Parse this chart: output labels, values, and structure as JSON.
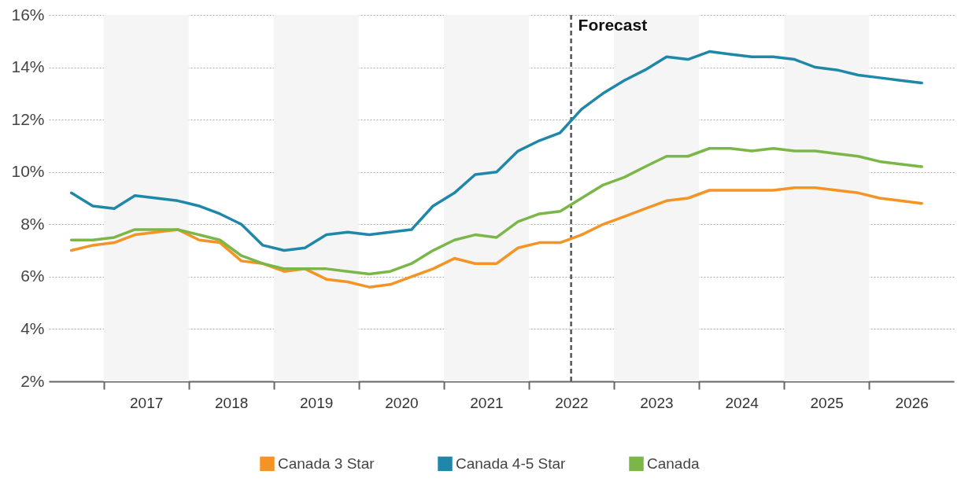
{
  "chart_data": {
    "type": "line",
    "x": [
      "2016-08-15",
      "2016-11-15",
      "2017-02-15",
      "2017-05-15",
      "2017-08-15",
      "2017-11-15",
      "2018-02-15",
      "2018-05-15",
      "2018-08-15",
      "2018-11-15",
      "2019-02-15",
      "2019-05-15",
      "2019-08-15",
      "2019-11-15",
      "2020-02-15",
      "2020-05-15",
      "2020-08-15",
      "2020-11-15",
      "2021-02-15",
      "2021-05-15",
      "2021-08-15",
      "2021-11-15",
      "2022-02-15",
      "2022-05-15",
      "2022-08-15",
      "2022-11-15",
      "2023-02-15",
      "2023-05-15",
      "2023-08-15",
      "2023-11-15",
      "2024-02-15",
      "2024-05-15",
      "2024-08-15",
      "2024-11-15",
      "2025-02-15",
      "2025-05-15",
      "2025-08-15",
      "2025-11-15",
      "2026-02-15",
      "2026-05-15",
      "2026-08-15"
    ],
    "series": [
      {
        "name": "Canada 3 Star",
        "color": "#f39425",
        "values": [
          7.0,
          7.2,
          7.3,
          7.6,
          7.7,
          7.8,
          7.4,
          7.3,
          6.6,
          6.5,
          6.2,
          6.3,
          5.9,
          5.8,
          5.6,
          5.7,
          6.0,
          6.3,
          6.7,
          6.5,
          6.5,
          7.1,
          7.3,
          7.3,
          7.6,
          8.0,
          8.3,
          8.6,
          8.9,
          9.0,
          9.3,
          9.3,
          9.3,
          9.3,
          9.4,
          9.4,
          9.3,
          9.2,
          9.0,
          8.9,
          8.8
        ]
      },
      {
        "name": "Canada 4-5 Star",
        "color": "#1f87a8",
        "values": [
          9.2,
          8.7,
          8.6,
          9.1,
          9.0,
          8.9,
          8.7,
          8.4,
          8.0,
          7.2,
          7.0,
          7.1,
          7.6,
          7.7,
          7.6,
          7.7,
          7.8,
          8.7,
          9.2,
          9.9,
          10.0,
          10.8,
          11.2,
          11.5,
          12.4,
          13.0,
          13.5,
          13.9,
          14.4,
          14.3,
          14.6,
          14.5,
          14.4,
          14.4,
          14.3,
          14.0,
          13.9,
          13.7,
          13.6,
          13.5,
          13.4
        ]
      },
      {
        "name": "Canada",
        "color": "#7ab648",
        "values": [
          7.4,
          7.4,
          7.5,
          7.8,
          7.8,
          7.8,
          7.6,
          7.4,
          6.8,
          6.5,
          6.3,
          6.3,
          6.3,
          6.2,
          6.1,
          6.2,
          6.5,
          7.0,
          7.4,
          7.6,
          7.5,
          8.1,
          8.4,
          8.5,
          9.0,
          9.5,
          9.8,
          10.2,
          10.6,
          10.6,
          10.9,
          10.9,
          10.8,
          10.9,
          10.8,
          10.8,
          10.7,
          10.6,
          10.4,
          10.3,
          10.2
        ]
      }
    ],
    "xlim": [
      "2016-05-10",
      "2026-12-31"
    ],
    "xticks": [
      {
        "value": "2017-01-01",
        "label": null
      },
      {
        "value": "2017-07-02",
        "label": "2017"
      },
      {
        "value": "2018-01-01",
        "label": null
      },
      {
        "value": "2018-07-02",
        "label": "2018"
      },
      {
        "value": "2019-01-01",
        "label": null
      },
      {
        "value": "2019-07-02",
        "label": "2019"
      },
      {
        "value": "2020-01-01",
        "label": null
      },
      {
        "value": "2020-07-02",
        "label": "2020"
      },
      {
        "value": "2021-01-01",
        "label": null
      },
      {
        "value": "2021-07-02",
        "label": "2021"
      },
      {
        "value": "2022-01-01",
        "label": null
      },
      {
        "value": "2022-07-02",
        "label": "2022"
      },
      {
        "value": "2023-01-01",
        "label": null
      },
      {
        "value": "2023-07-02",
        "label": "2023"
      },
      {
        "value": "2024-01-01",
        "label": null
      },
      {
        "value": "2024-07-02",
        "label": "2024"
      },
      {
        "value": "2025-01-01",
        "label": null
      },
      {
        "value": "2025-07-02",
        "label": "2025"
      },
      {
        "value": "2026-01-01",
        "label": null
      },
      {
        "value": "2026-07-02",
        "label": "2026"
      }
    ],
    "ylim": [
      2,
      16
    ],
    "yticks": [
      {
        "value": 2,
        "label": "2%"
      },
      {
        "value": 4,
        "label": "4%"
      },
      {
        "value": 6,
        "label": "6%"
      },
      {
        "value": 8,
        "label": "8%"
      },
      {
        "value": 10,
        "label": "10%"
      },
      {
        "value": 12,
        "label": "12%"
      },
      {
        "value": 14,
        "label": "14%"
      },
      {
        "value": 16,
        "label": "16%"
      }
    ],
    "grid": "y",
    "legend": "bottom",
    "marker": "none",
    "line_style": "solid",
    "ref_lines": [
      {
        "axis": "x",
        "value": "2022-07-01",
        "label": "Forecast",
        "color": "#555555",
        "line_style": "dashed"
      }
    ],
    "bands": [
      {
        "axis": "x",
        "from": "2017-01-01",
        "to": "2018-01-01",
        "color": "#f5f5f5"
      },
      {
        "axis": "x",
        "from": "2019-01-01",
        "to": "2020-01-01",
        "color": "#f5f5f5"
      },
      {
        "axis": "x",
        "from": "2021-01-01",
        "to": "2022-01-01",
        "color": "#f5f5f5"
      },
      {
        "axis": "x",
        "from": "2023-01-01",
        "to": "2024-01-01",
        "color": "#f5f5f5"
      },
      {
        "axis": "x",
        "from": "2025-01-01",
        "to": "2026-01-01",
        "color": "#f5f5f5"
      }
    ]
  }
}
